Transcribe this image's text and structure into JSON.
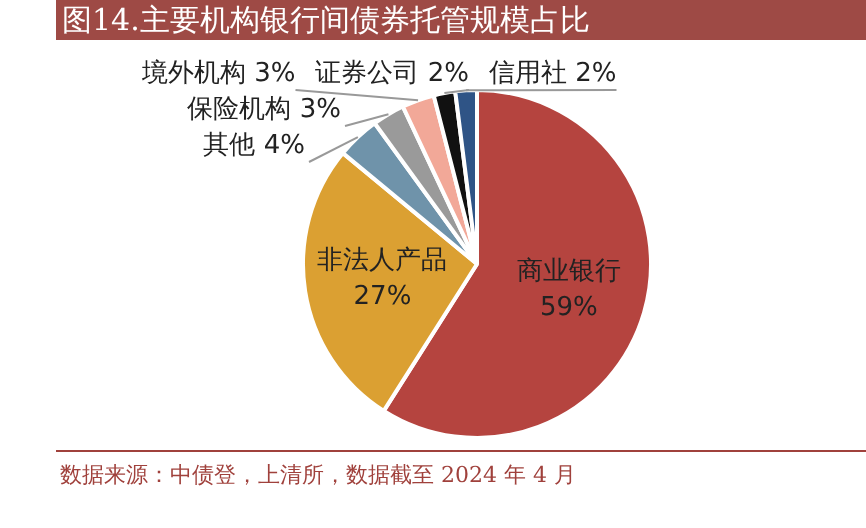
{
  "chart_data": {
    "type": "pie",
    "title": "图14.主要机构银行间债券托管规模占比",
    "categories": [
      "商业银行",
      "非法人产品",
      "其他",
      "保险机构",
      "境外机构",
      "证券公司",
      "信用社"
    ],
    "values": [
      59,
      27,
      4,
      3,
      3,
      2,
      2
    ],
    "value_labels": [
      "59%",
      "27%",
      "4%",
      "3%",
      "3%",
      "2%",
      "2%"
    ],
    "colors": [
      "#b5443f",
      "#dba032",
      "#6f93aa",
      "#9a9a9a",
      "#f2a898",
      "#111111",
      "#2f5486"
    ],
    "legend": false,
    "annotations": [
      "数据来源：中债登，上清所，数据截至 2024 年 4 月"
    ]
  }
}
